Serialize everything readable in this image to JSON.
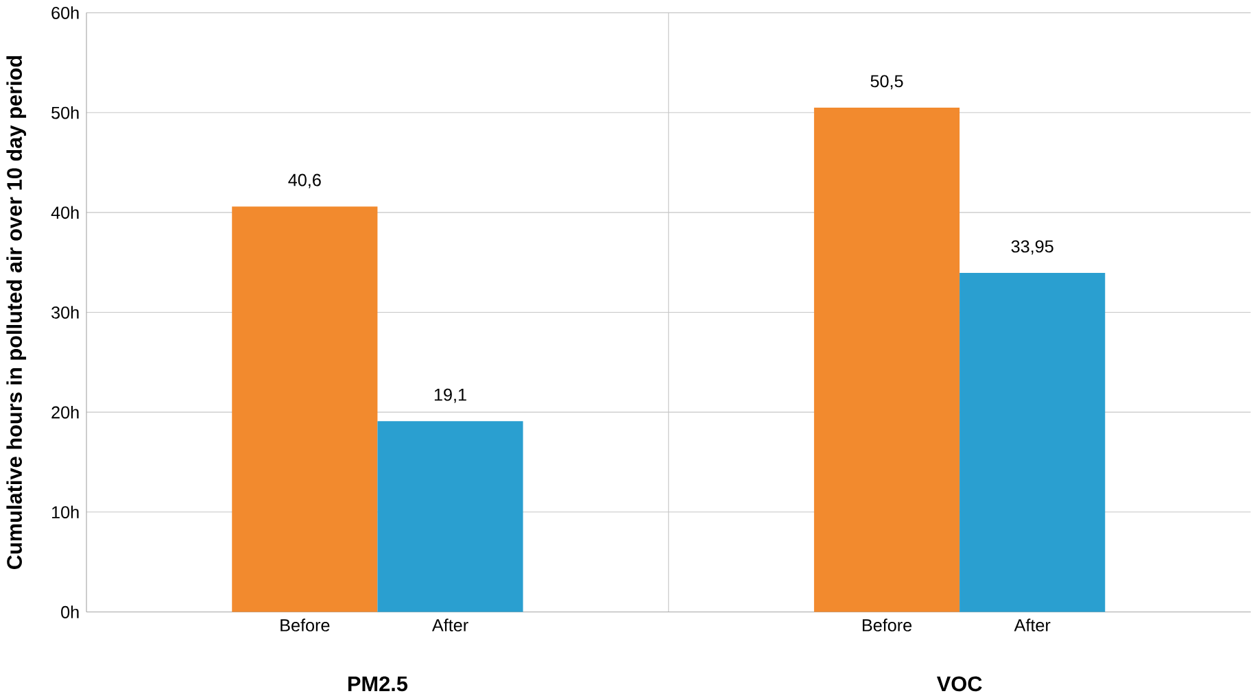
{
  "chart_data": {
    "type": "bar",
    "ylabel": "Cumulative hours  in polluted air over 10 day period",
    "categories": [
      "PM2.5",
      "VOC"
    ],
    "series": [
      {
        "name": "Before",
        "color": "#f28a2e",
        "values": [
          40.6,
          50.5
        ],
        "value_labels": [
          "40,6",
          "50,5"
        ]
      },
      {
        "name": "After",
        "color": "#2a9fd0",
        "values": [
          19.1,
          33.95
        ],
        "value_labels": [
          "19,1",
          "33,95"
        ]
      }
    ],
    "ylim": [
      0,
      60
    ],
    "yticks": [
      {
        "value": 0,
        "label": "0h"
      },
      {
        "value": 10,
        "label": "10h"
      },
      {
        "value": 20,
        "label": "20h"
      },
      {
        "value": 30,
        "label": "30h"
      },
      {
        "value": 40,
        "label": "40h"
      },
      {
        "value": 50,
        "label": "50h"
      },
      {
        "value": 60,
        "label": "60h"
      }
    ],
    "grid": true,
    "legend": false
  }
}
